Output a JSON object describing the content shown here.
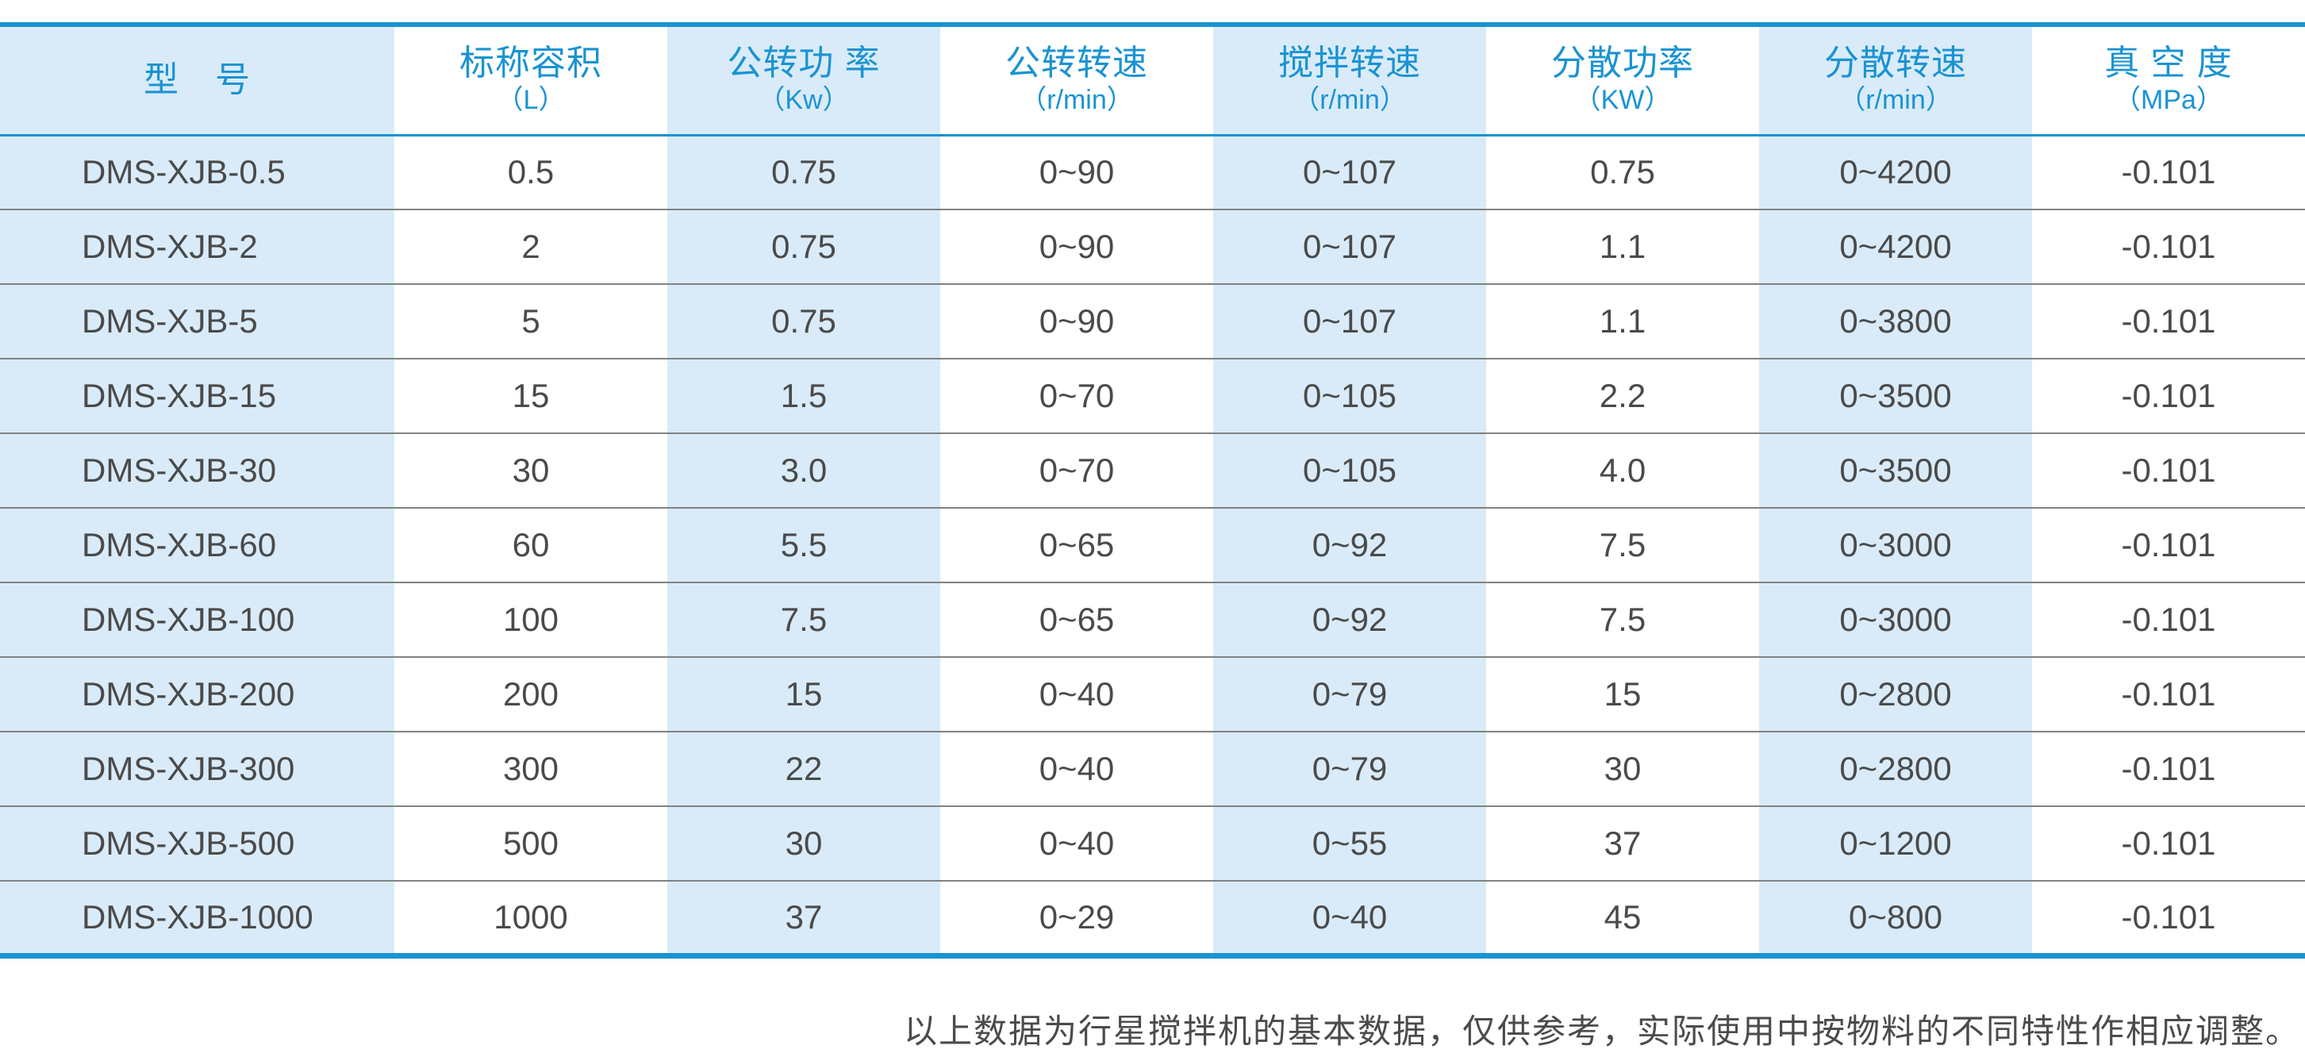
{
  "colors": {
    "accent": "#1a93d2",
    "cell_blue": "#d9ebf8",
    "text": "#4a4a4a",
    "separator": "#828282"
  },
  "table": {
    "columns": [
      {
        "key": "model",
        "label": "型　号",
        "unit": ""
      },
      {
        "key": "nominal-volume",
        "label": "标称容积",
        "unit": "（L）"
      },
      {
        "key": "revolution-power",
        "label": "公转功 率",
        "unit": "（Kw）"
      },
      {
        "key": "revolution-speed",
        "label": "公转转速",
        "unit": "（r/min）"
      },
      {
        "key": "stirring-speed",
        "label": "搅拌转速",
        "unit": "（r/min）"
      },
      {
        "key": "dispersion-power",
        "label": "分散功率",
        "unit": "（KW）"
      },
      {
        "key": "dispersion-speed",
        "label": "分散转速",
        "unit": "（r/min）"
      },
      {
        "key": "vacuum-degree",
        "label": "真 空 度",
        "unit": "（MPa）"
      }
    ],
    "rows": [
      {
        "cells": [
          "DMS-XJB-0.5",
          "0.5",
          "0.75",
          "0~90",
          "0~107",
          "0.75",
          "0~4200",
          "-0.101"
        ]
      },
      {
        "cells": [
          "DMS-XJB-2",
          "2",
          "0.75",
          "0~90",
          "0~107",
          "1.1",
          "0~4200",
          "-0.101"
        ]
      },
      {
        "cells": [
          "DMS-XJB-5",
          "5",
          "0.75",
          "0~90",
          "0~107",
          "1.1",
          "0~3800",
          "-0.101"
        ]
      },
      {
        "cells": [
          "DMS-XJB-15",
          "15",
          "1.5",
          "0~70",
          "0~105",
          "2.2",
          "0~3500",
          "-0.101"
        ]
      },
      {
        "cells": [
          "DMS-XJB-30",
          "30",
          "3.0",
          "0~70",
          "0~105",
          "4.0",
          "0~3500",
          "-0.101"
        ]
      },
      {
        "cells": [
          "DMS-XJB-60",
          "60",
          "5.5",
          "0~65",
          "0~92",
          "7.5",
          "0~3000",
          "-0.101"
        ]
      },
      {
        "cells": [
          "DMS-XJB-100",
          "100",
          "7.5",
          "0~65",
          "0~92",
          "7.5",
          "0~3000",
          "-0.101"
        ]
      },
      {
        "cells": [
          "DMS-XJB-200",
          "200",
          "15",
          "0~40",
          "0~79",
          "15",
          "0~2800",
          "-0.101"
        ]
      },
      {
        "cells": [
          "DMS-XJB-300",
          "300",
          "22",
          "0~40",
          "0~79",
          "30",
          "0~2800",
          "-0.101"
        ]
      },
      {
        "cells": [
          "DMS-XJB-500",
          "500",
          "30",
          "0~40",
          "0~55",
          "37",
          "0~1200",
          "-0.101"
        ]
      },
      {
        "cells": [
          "DMS-XJB-1000",
          "1000",
          "37",
          "0~29",
          "0~40",
          "45",
          "0~800",
          "-0.101"
        ]
      }
    ]
  },
  "footer": {
    "note": "以上数据为行星搅拌机的基本数据，仅供参考，实际使用中按物料的不同特性作相应调整。"
  }
}
